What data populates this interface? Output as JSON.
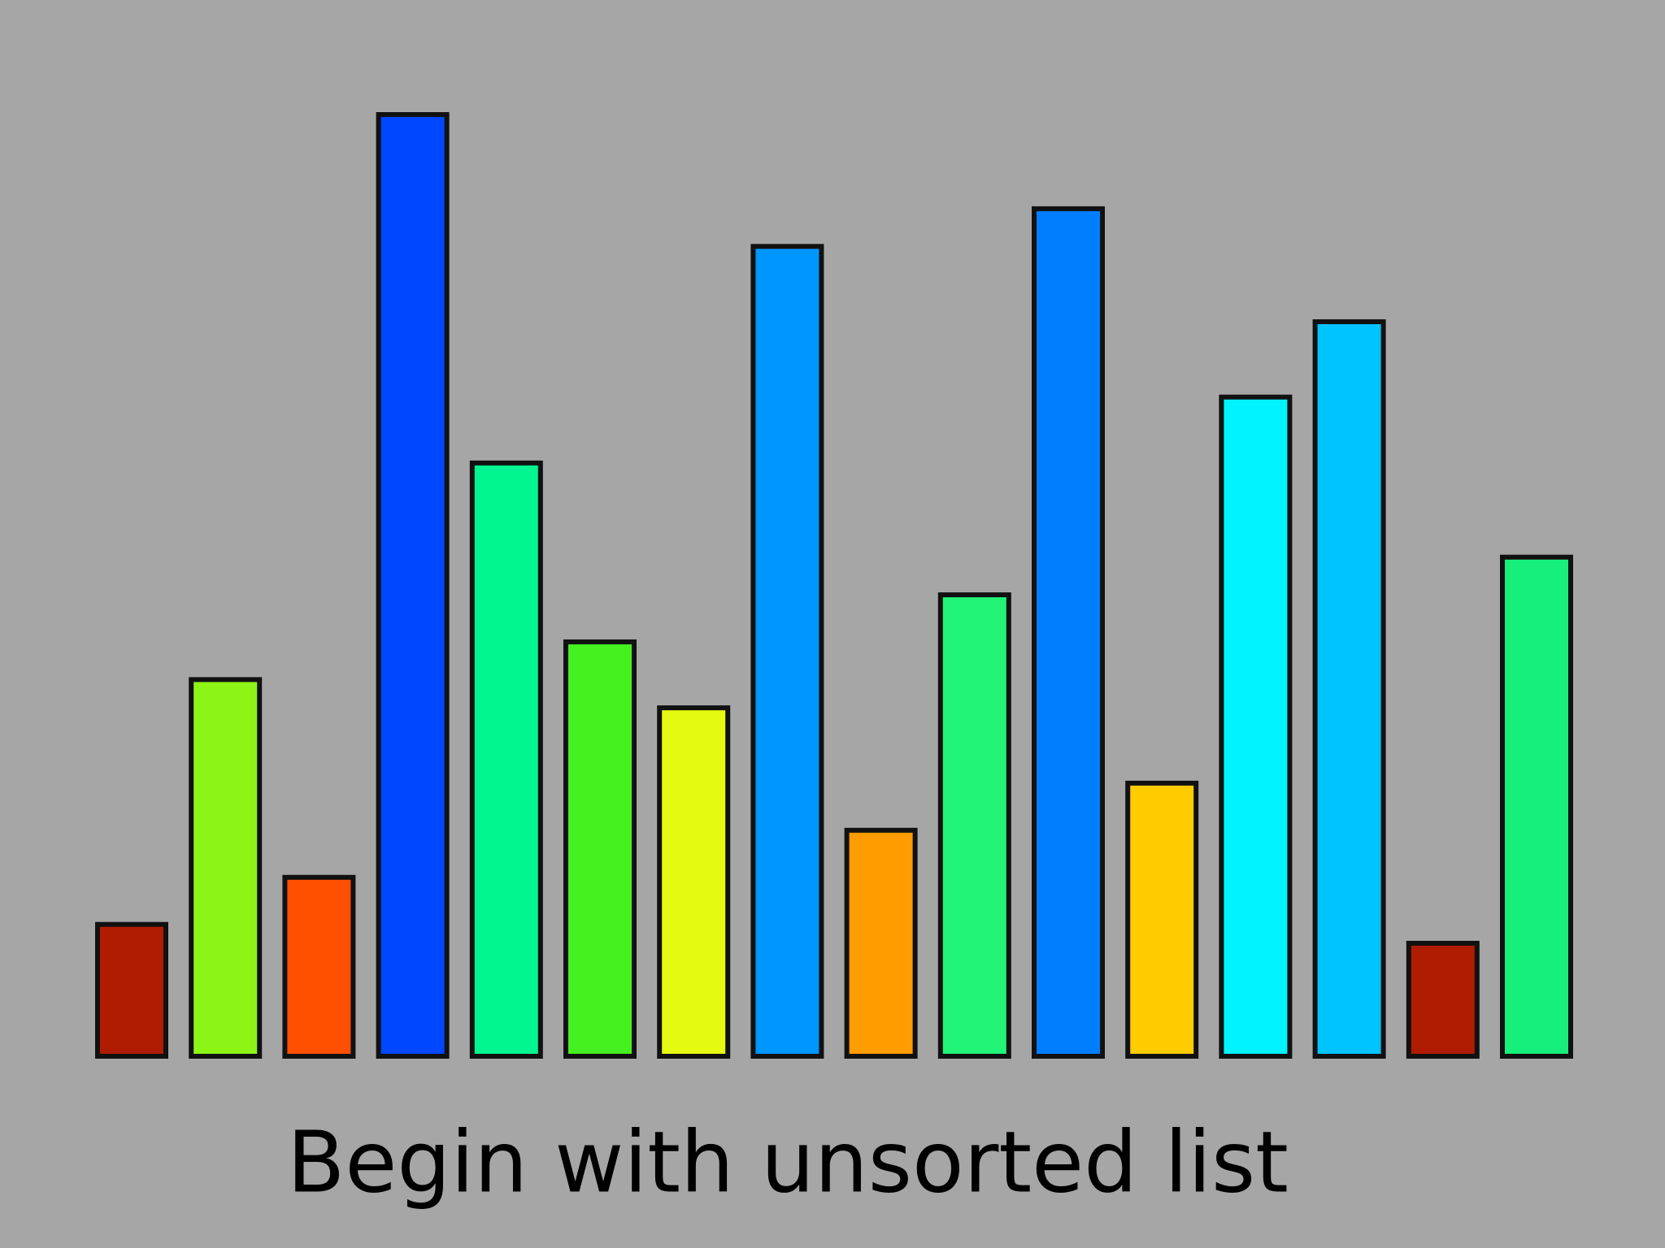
{
  "chart_data": {
    "type": "bar",
    "title": "Begin with unsorted list",
    "values": [
      14,
      40,
      19,
      100,
      63,
      44,
      37,
      86,
      24,
      49,
      90,
      29,
      70,
      78,
      12,
      53
    ],
    "colors": [
      "#b01c00",
      "#8cf516",
      "#ff5000",
      "#0048ff",
      "#00f590",
      "#44f020",
      "#e4fa10",
      "#0096ff",
      "#ff9c00",
      "#22f478",
      "#007eff",
      "#ffcc00",
      "#00f4ff",
      "#00c4ff",
      "#b01c00",
      "#16ef7c"
    ],
    "ylim": [
      0,
      100
    ]
  }
}
